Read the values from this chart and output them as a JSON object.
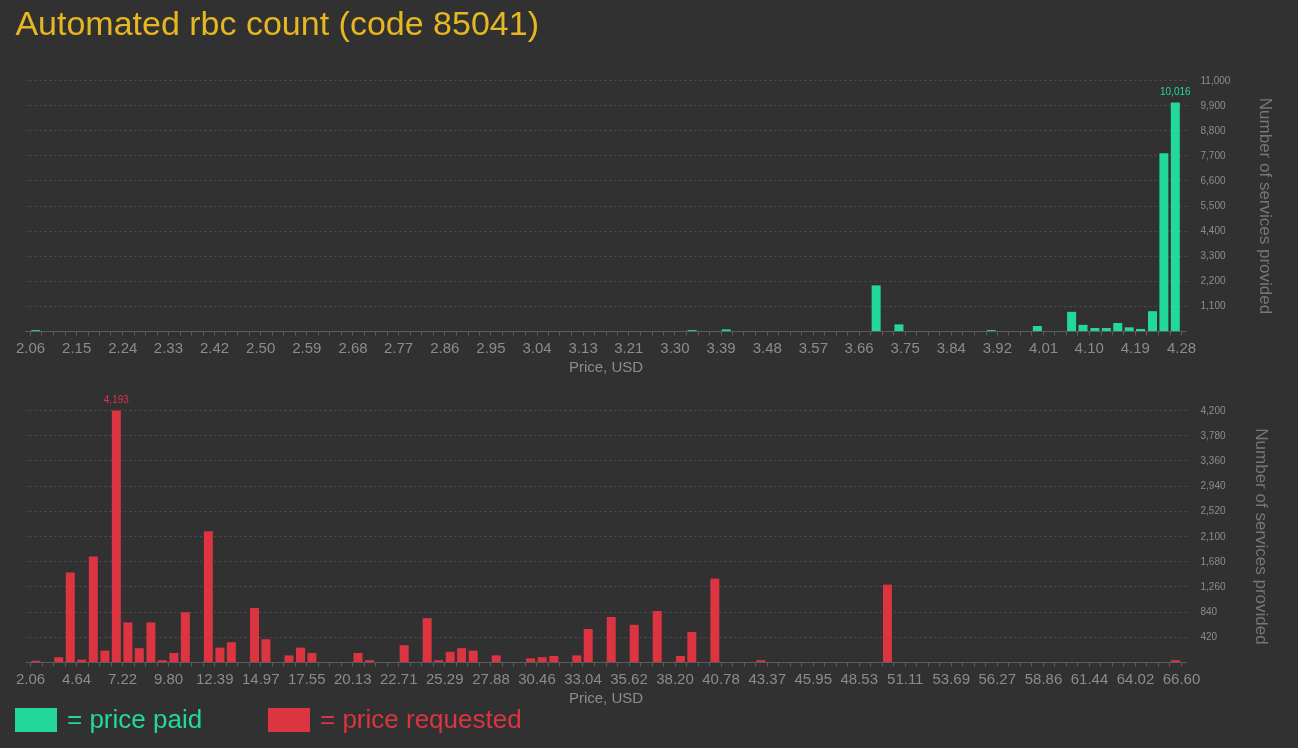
{
  "chart_data": [
    {
      "type": "bar",
      "title": "Automated rbc count (code 85041)",
      "xlabel": "Price, USD",
      "ylabel": "Number of services provided",
      "x": [
        2.071,
        3.337,
        3.403,
        3.692,
        3.736,
        3.914,
        4.003,
        4.069,
        4.091,
        4.114,
        4.136,
        4.158,
        4.18,
        4.202,
        4.225,
        4.247,
        4.269
      ],
      "series": [
        {
          "name": "= price paid",
          "color": "#23d89b",
          "values": [
            40,
            40,
            70,
            2000,
            290,
            40,
            220,
            840,
            270,
            130,
            130,
            350,
            160,
            90,
            870,
            7790,
            10016
          ],
          "value_labels": [
            null,
            null,
            null,
            null,
            null,
            null,
            null,
            null,
            null,
            null,
            null,
            null,
            null,
            null,
            null,
            null,
            "10,016"
          ]
        }
      ],
      "xlim": [
        2.06,
        4.28
      ],
      "ylim": [
        0,
        11000
      ],
      "xticks": [
        2.06,
        {
          "value": 2.082,
          "label": null
        },
        {
          "value": 2.104,
          "label": null
        },
        {
          "value": 2.127,
          "label": null
        },
        {
          "value": 2.149,
          "label": "2.15"
        },
        {
          "value": 2.171,
          "label": null
        },
        {
          "value": 2.193,
          "label": null
        },
        {
          "value": 2.215,
          "label": null
        },
        {
          "value": 2.238,
          "label": "2.24"
        },
        {
          "value": 2.26,
          "label": null
        },
        {
          "value": 2.282,
          "label": null
        },
        {
          "value": 2.304,
          "label": null
        },
        {
          "value": 2.326,
          "label": "2.33"
        },
        {
          "value": 2.349,
          "label": null
        },
        {
          "value": 2.371,
          "label": null
        },
        {
          "value": 2.393,
          "label": null
        },
        {
          "value": 2.415,
          "label": "2.42"
        },
        {
          "value": 2.437,
          "label": null
        },
        {
          "value": 2.46,
          "label": null
        },
        {
          "value": 2.482,
          "label": null
        },
        {
          "value": 2.504,
          "label": "2.50"
        },
        {
          "value": 2.526,
          "label": null
        },
        {
          "value": 2.548,
          "label": null
        },
        {
          "value": 2.571,
          "label": null
        },
        {
          "value": 2.593,
          "label": "2.59"
        },
        {
          "value": 2.615,
          "label": null
        },
        {
          "value": 2.637,
          "label": null
        },
        {
          "value": 2.659,
          "label": null
        },
        {
          "value": 2.682,
          "label": "2.68"
        },
        {
          "value": 2.704,
          "label": null
        },
        {
          "value": 2.726,
          "label": null
        },
        {
          "value": 2.748,
          "label": null
        },
        2.77,
        {
          "value": 2.793,
          "label": null
        },
        {
          "value": 2.815,
          "label": null
        },
        {
          "value": 2.837,
          "label": null
        },
        {
          "value": 2.859,
          "label": "2.86"
        },
        {
          "value": 2.881,
          "label": null
        },
        {
          "value": 2.904,
          "label": null
        },
        {
          "value": 2.926,
          "label": null
        },
        {
          "value": 2.948,
          "label": "2.95"
        },
        {
          "value": 2.97,
          "label": null
        },
        {
          "value": 2.992,
          "label": null
        },
        {
          "value": 3.015,
          "label": null
        },
        {
          "value": 3.037,
          "label": "3.04"
        },
        {
          "value": 3.059,
          "label": null
        },
        {
          "value": 3.081,
          "label": null
        },
        {
          "value": 3.103,
          "label": null
        },
        {
          "value": 3.126,
          "label": "3.13"
        },
        {
          "value": 3.148,
          "label": null
        },
        {
          "value": 3.17,
          "label": null
        },
        {
          "value": 3.192,
          "label": null
        },
        {
          "value": 3.214,
          "label": "3.21"
        },
        {
          "value": 3.237,
          "label": null
        },
        {
          "value": 3.259,
          "label": null
        },
        {
          "value": 3.281,
          "label": null
        },
        {
          "value": 3.303,
          "label": "3.30"
        },
        {
          "value": 3.325,
          "label": null
        },
        {
          "value": 3.348,
          "label": null
        },
        {
          "value": 3.37,
          "label": null
        },
        {
          "value": 3.392,
          "label": "3.39"
        },
        {
          "value": 3.414,
          "label": null
        },
        {
          "value": 3.436,
          "label": null
        },
        {
          "value": 3.459,
          "label": null
        },
        {
          "value": 3.481,
          "label": "3.48"
        },
        {
          "value": 3.503,
          "label": null
        },
        {
          "value": 3.525,
          "label": null
        },
        {
          "value": 3.547,
          "label": null
        },
        3.57,
        {
          "value": 3.592,
          "label": null
        },
        {
          "value": 3.614,
          "label": null
        },
        {
          "value": 3.636,
          "label": null
        },
        {
          "value": 3.658,
          "label": "3.66"
        },
        {
          "value": 3.681,
          "label": null
        },
        {
          "value": 3.703,
          "label": null
        },
        {
          "value": 3.725,
          "label": null
        },
        {
          "value": 3.747,
          "label": "3.75"
        },
        {
          "value": 3.769,
          "label": null
        },
        {
          "value": 3.792,
          "label": null
        },
        {
          "value": 3.814,
          "label": null
        },
        {
          "value": 3.836,
          "label": "3.84"
        },
        {
          "value": 3.858,
          "label": null
        },
        {
          "value": 3.88,
          "label": null
        },
        {
          "value": 3.903,
          "label": null
        },
        {
          "value": 3.925,
          "label": "3.92"
        },
        {
          "value": 3.947,
          "label": null
        },
        {
          "value": 3.969,
          "label": null
        },
        {
          "value": 3.991,
          "label": null
        },
        {
          "value": 4.014,
          "label": "4.01"
        },
        {
          "value": 4.036,
          "label": null
        },
        {
          "value": 4.058,
          "label": null
        },
        {
          "value": 4.08,
          "label": null
        },
        {
          "value": 4.102,
          "label": "4.10"
        },
        {
          "value": 4.125,
          "label": null
        },
        {
          "value": 4.147,
          "label": null
        },
        {
          "value": 4.169,
          "label": null
        },
        {
          "value": 4.191,
          "label": "4.19"
        },
        {
          "value": 4.213,
          "label": null
        },
        {
          "value": 4.236,
          "label": null
        },
        {
          "value": 4.258,
          "label": null
        },
        4.28
      ],
      "yticks": [
        {
          "value": 1100,
          "label": "1,100"
        },
        {
          "value": 2200,
          "label": "2,200"
        },
        {
          "value": 3300,
          "label": "3,300"
        },
        {
          "value": 4400,
          "label": "4,400"
        },
        {
          "value": 5500,
          "label": "5,500"
        },
        {
          "value": 6600,
          "label": "6,600"
        },
        {
          "value": 7700,
          "label": "7,700"
        },
        {
          "value": 8800,
          "label": "8,800"
        },
        {
          "value": 9900,
          "label": "9,900"
        },
        {
          "value": 11000,
          "label": "11,000"
        }
      ],
      "grid": "y",
      "legend": "bottom left"
    },
    {
      "type": "bar",
      "xlabel": "Price, USD",
      "ylabel": "Number of services provided",
      "x": [
        2.38,
        3.67,
        4.32,
        4.96,
        5.61,
        6.26,
        6.9,
        7.55,
        8.19,
        8.84,
        9.48,
        10.13,
        10.77,
        12.06,
        12.71,
        13.35,
        14.65,
        15.29,
        16.58,
        17.23,
        17.87,
        20.45,
        21.1,
        23.04,
        24.33,
        24.97,
        25.62,
        26.26,
        26.91,
        28.2,
        30.13,
        30.78,
        31.43,
        32.72,
        33.36,
        34.65,
        35.94,
        37.23,
        38.53,
        39.17,
        40.46,
        43.04,
        50.14,
        66.28
      ],
      "series": [
        {
          "name": "= price requested",
          "color": "#dc3441",
          "values": [
            20,
            80,
            1490,
            40,
            1760,
            190,
            4193,
            660,
            230,
            660,
            30,
            150,
            830,
            2180,
            240,
            330,
            900,
            380,
            110,
            240,
            150,
            150,
            30,
            280,
            730,
            30,
            170,
            230,
            190,
            110,
            60,
            80,
            100,
            110,
            550,
            750,
            620,
            850,
            100,
            500,
            1390,
            30,
            1290,
            30
          ],
          "value_labels": [
            null,
            null,
            null,
            null,
            null,
            null,
            "4,193",
            null,
            null,
            null,
            null,
            null,
            null,
            null,
            null,
            null,
            null,
            null,
            null,
            null,
            null,
            null,
            null,
            null,
            null,
            null,
            null,
            null,
            null,
            null,
            null,
            null,
            null,
            null,
            null,
            null,
            null,
            null,
            null,
            null,
            null,
            null,
            null,
            null
          ]
        }
      ],
      "xlim": [
        2.06,
        66.6
      ],
      "ylim": [
        0,
        4200
      ],
      "xticks": [
        2.06,
        {
          "value": 2.71,
          "label": null
        },
        {
          "value": 3.35,
          "label": null
        },
        {
          "value": 4,
          "label": null
        },
        4.64,
        {
          "value": 5.29,
          "label": null
        },
        {
          "value": 5.93,
          "label": null
        },
        {
          "value": 6.58,
          "label": null
        },
        7.22,
        {
          "value": 7.87,
          "label": null
        },
        {
          "value": 8.51,
          "label": null
        },
        {
          "value": 9.16,
          "label": null
        },
        {
          "value": 9.8,
          "label": "9.80"
        },
        {
          "value": 10.45,
          "label": null
        },
        {
          "value": 11.1,
          "label": null
        },
        {
          "value": 11.74,
          "label": null
        },
        12.39,
        {
          "value": 13.03,
          "label": null
        },
        {
          "value": 13.68,
          "label": null
        },
        {
          "value": 14.32,
          "label": null
        },
        14.97,
        {
          "value": 15.61,
          "label": null
        },
        {
          "value": 16.26,
          "label": null
        },
        {
          "value": 16.9,
          "label": null
        },
        17.55,
        {
          "value": 18.2,
          "label": null
        },
        {
          "value": 18.84,
          "label": null
        },
        {
          "value": 19.49,
          "label": null
        },
        20.13,
        {
          "value": 20.78,
          "label": null
        },
        {
          "value": 21.42,
          "label": null
        },
        {
          "value": 22.07,
          "label": null
        },
        22.71,
        {
          "value": 23.36,
          "label": null
        },
        {
          "value": 24,
          "label": null
        },
        {
          "value": 24.65,
          "label": null
        },
        25.29,
        {
          "value": 25.94,
          "label": null
        },
        {
          "value": 26.59,
          "label": null
        },
        {
          "value": 27.23,
          "label": null
        },
        27.88,
        {
          "value": 28.52,
          "label": null
        },
        {
          "value": 29.17,
          "label": null
        },
        {
          "value": 29.81,
          "label": null
        },
        30.46,
        {
          "value": 31.1,
          "label": null
        },
        {
          "value": 31.75,
          "label": null
        },
        {
          "value": 32.39,
          "label": null
        },
        33.04,
        {
          "value": 33.68,
          "label": null
        },
        {
          "value": 34.33,
          "label": null
        },
        {
          "value": 34.98,
          "label": null
        },
        35.62,
        {
          "value": 36.27,
          "label": null
        },
        {
          "value": 36.91,
          "label": null
        },
        {
          "value": 37.56,
          "label": null
        },
        {
          "value": 38.2,
          "label": "38.20"
        },
        {
          "value": 38.85,
          "label": null
        },
        {
          "value": 39.49,
          "label": null
        },
        {
          "value": 40.14,
          "label": null
        },
        40.78,
        {
          "value": 41.43,
          "label": null
        },
        {
          "value": 42.07,
          "label": null
        },
        {
          "value": 42.72,
          "label": null
        },
        43.37,
        {
          "value": 44.01,
          "label": null
        },
        {
          "value": 44.66,
          "label": null
        },
        {
          "value": 45.3,
          "label": null
        },
        45.95,
        {
          "value": 46.59,
          "label": null
        },
        {
          "value": 47.24,
          "label": null
        },
        {
          "value": 47.88,
          "label": null
        },
        48.53,
        {
          "value": 49.17,
          "label": null
        },
        {
          "value": 49.82,
          "label": null
        },
        {
          "value": 50.47,
          "label": null
        },
        51.11,
        {
          "value": 51.76,
          "label": null
        },
        {
          "value": 52.4,
          "label": null
        },
        {
          "value": 53.05,
          "label": null
        },
        53.69,
        {
          "value": 54.34,
          "label": null
        },
        {
          "value": 54.98,
          "label": null
        },
        {
          "value": 55.63,
          "label": null
        },
        56.27,
        {
          "value": 56.92,
          "label": null
        },
        {
          "value": 57.56,
          "label": null
        },
        {
          "value": 58.21,
          "label": null
        },
        58.86,
        {
          "value": 59.5,
          "label": null
        },
        {
          "value": 60.15,
          "label": null
        },
        {
          "value": 60.79,
          "label": null
        },
        61.44,
        {
          "value": 62.08,
          "label": null
        },
        {
          "value": 62.73,
          "label": null
        },
        {
          "value": 63.37,
          "label": null
        },
        64.02,
        {
          "value": 64.66,
          "label": null
        },
        {
          "value": 65.31,
          "label": null
        },
        {
          "value": 65.95,
          "label": null
        },
        {
          "value": 66.6,
          "label": "66.60"
        }
      ],
      "yticks": [
        420,
        840,
        {
          "value": 1260,
          "label": "1,260"
        },
        {
          "value": 1680,
          "label": "1,680"
        },
        {
          "value": 2100,
          "label": "2,100"
        },
        {
          "value": 2520,
          "label": "2,520"
        },
        {
          "value": 2940,
          "label": "2,940"
        },
        {
          "value": 3360,
          "label": "3,360"
        },
        {
          "value": 3780,
          "label": "3,780"
        },
        {
          "value": 4200,
          "label": "4,200"
        }
      ],
      "grid": "y",
      "legend": "bottom left"
    }
  ]
}
